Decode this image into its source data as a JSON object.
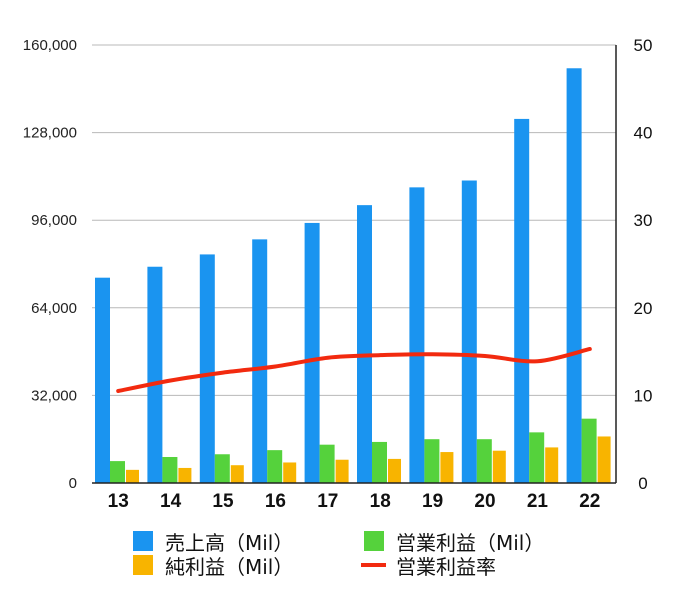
{
  "chart_data": {
    "type": "bar",
    "categories": [
      "13",
      "14",
      "15",
      "16",
      "17",
      "18",
      "19",
      "20",
      "21",
      "22"
    ],
    "series": [
      {
        "name": "売上高（Mil）",
        "axis": "left",
        "kind": "bar",
        "color": "#1a94f0",
        "values": [
          75000,
          79000,
          83500,
          89000,
          95000,
          101500,
          108000,
          110500,
          133000,
          151500
        ]
      },
      {
        "name": "営業利益（Mil）",
        "axis": "left",
        "kind": "bar",
        "color": "#55d23c",
        "values": [
          8000,
          9500,
          10500,
          12000,
          14000,
          15000,
          16000,
          16000,
          18500,
          23500
        ]
      },
      {
        "name": "純利益（Mil）",
        "axis": "left",
        "kind": "bar",
        "color": "#f8b400",
        "values": [
          4800,
          5500,
          6500,
          7500,
          8500,
          8800,
          11300,
          11800,
          13000,
          17000
        ]
      },
      {
        "name": "営業利益率",
        "axis": "right",
        "kind": "line",
        "color": "#f22a0f",
        "values": [
          10.5,
          11.7,
          12.6,
          13.3,
          14.3,
          14.6,
          14.7,
          14.5,
          13.9,
          15.3
        ]
      }
    ],
    "y_left": {
      "min": 0,
      "max": 160000,
      "ticks": [
        "0",
        "32,000",
        "64,000",
        "96,000",
        "128,000",
        "160,000"
      ],
      "tick_values": [
        0,
        32000,
        64000,
        96000,
        128000,
        160000
      ]
    },
    "y_right": {
      "min": 0,
      "max": 50,
      "ticks": [
        "0",
        "10",
        "20",
        "30",
        "40",
        "50"
      ],
      "tick_values": [
        0,
        10,
        20,
        30,
        40,
        50
      ]
    },
    "grid": "horizontal",
    "legend_position": "bottom",
    "title": "",
    "xlabel": "",
    "ylabel": ""
  },
  "legend": [
    {
      "label": "売上高（Mil）",
      "color": "#1a94f0",
      "shape": "box"
    },
    {
      "label": "営業利益（Mil）",
      "color": "#55d23c",
      "shape": "box"
    },
    {
      "label": "純利益（Mil）",
      "color": "#f8b400",
      "shape": "box"
    },
    {
      "label": "営業利益率",
      "color": "#f22a0f",
      "shape": "line"
    }
  ]
}
